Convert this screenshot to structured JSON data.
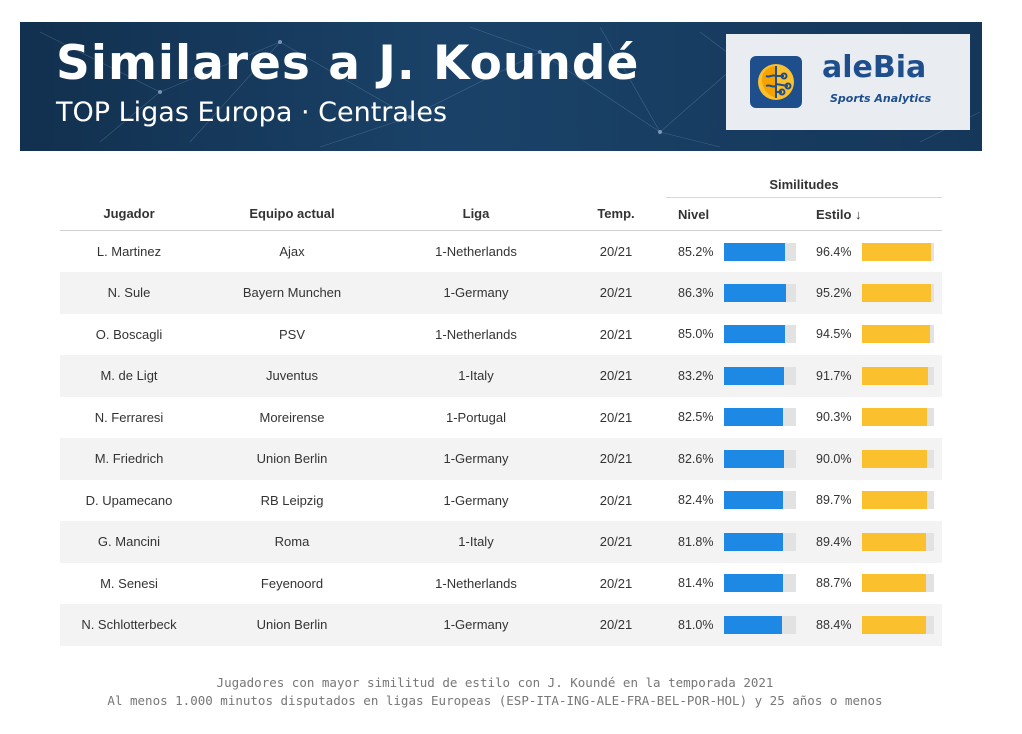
{
  "header": {
    "title": "Similares a J. Koundé",
    "subtitle": "TOP Ligas Europa · Centrales",
    "logo_name": "aleBia",
    "logo_tagline": "Sports Analytics"
  },
  "colors": {
    "banner": "#12304f",
    "nivel_bar": "#1e88e5",
    "estilo_bar": "#fbc02d",
    "track": "#e2e2e2"
  },
  "table": {
    "group_header": "Similitudes",
    "columns": [
      "Jugador",
      "Equipo actual",
      "Liga",
      "Temp.",
      "Nivel",
      "Estilo ↓"
    ]
  },
  "chart_data": {
    "type": "table",
    "title": "Similares a J. Koundé",
    "subtitle": "TOP Ligas Europa · Centrales",
    "rows": [
      {
        "player": "L. Martinez",
        "team": "Ajax",
        "league": "1-Netherlands",
        "season": "20/21",
        "nivel": 85.2,
        "estilo": 96.4,
        "nivel_label": "85.2%",
        "estilo_label": "96.4%"
      },
      {
        "player": "N. Sule",
        "team": "Bayern Munchen",
        "league": "1-Germany",
        "season": "20/21",
        "nivel": 86.3,
        "estilo": 95.2,
        "nivel_label": "86.3%",
        "estilo_label": "95.2%"
      },
      {
        "player": "O. Boscagli",
        "team": "PSV",
        "league": "1-Netherlands",
        "season": "20/21",
        "nivel": 85.0,
        "estilo": 94.5,
        "nivel_label": "85.0%",
        "estilo_label": "94.5%"
      },
      {
        "player": "M. de Ligt",
        "team": "Juventus",
        "league": "1-Italy",
        "season": "20/21",
        "nivel": 83.2,
        "estilo": 91.7,
        "nivel_label": "83.2%",
        "estilo_label": "91.7%"
      },
      {
        "player": "N. Ferraresi",
        "team": "Moreirense",
        "league": "1-Portugal",
        "season": "20/21",
        "nivel": 82.5,
        "estilo": 90.3,
        "nivel_label": "82.5%",
        "estilo_label": "90.3%"
      },
      {
        "player": "M. Friedrich",
        "team": "Union Berlin",
        "league": "1-Germany",
        "season": "20/21",
        "nivel": 82.6,
        "estilo": 90.0,
        "nivel_label": "82.6%",
        "estilo_label": "90.0%"
      },
      {
        "player": "D. Upamecano",
        "team": "RB Leipzig",
        "league": "1-Germany",
        "season": "20/21",
        "nivel": 82.4,
        "estilo": 89.7,
        "nivel_label": "82.4%",
        "estilo_label": "89.7%"
      },
      {
        "player": "G. Mancini",
        "team": "Roma",
        "league": "1-Italy",
        "season": "20/21",
        "nivel": 81.8,
        "estilo": 89.4,
        "nivel_label": "81.8%",
        "estilo_label": "89.4%"
      },
      {
        "player": "M. Senesi",
        "team": "Feyenoord",
        "league": "1-Netherlands",
        "season": "20/21",
        "nivel": 81.4,
        "estilo": 88.7,
        "nivel_label": "81.4%",
        "estilo_label": "88.7%"
      },
      {
        "player": "N. Schlotterbeck",
        "team": "Union Berlin",
        "league": "1-Germany",
        "season": "20/21",
        "nivel": 81.0,
        "estilo": 88.4,
        "nivel_label": "81.0%",
        "estilo_label": "88.4%"
      }
    ]
  },
  "footer": {
    "line1": "Jugadores con mayor similitud de estilo con J. Koundé en la temporada 2021",
    "line2": "Al menos 1.000 minutos disputados en ligas Europeas (ESP-ITA-ING-ALE-FRA-BEL-POR-HOL) y 25 años o menos"
  }
}
